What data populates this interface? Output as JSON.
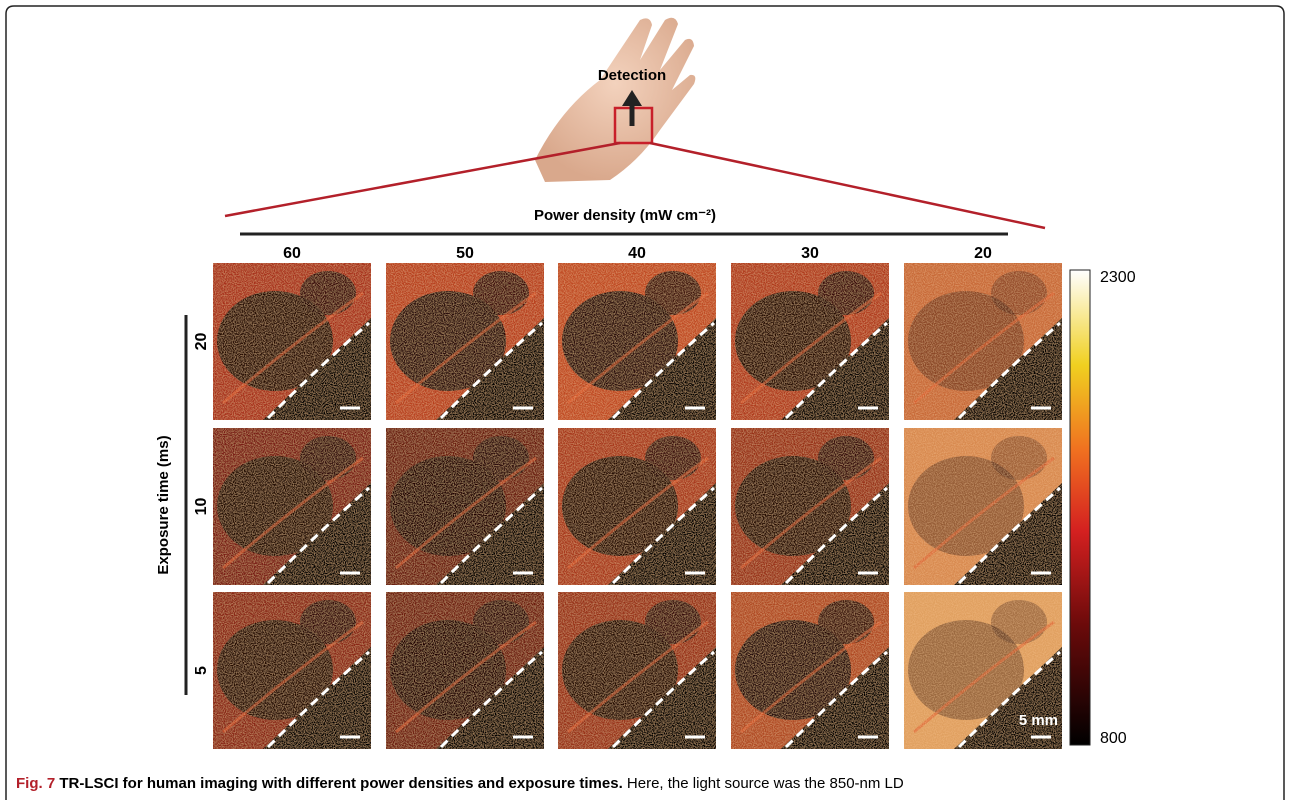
{
  "figure": {
    "hand_label": "Detection",
    "column_axis_title": "Power density (mW cm⁻²)",
    "columns": [
      60,
      50,
      40,
      30,
      20
    ],
    "row_axis_title": "Exposure time (ms)",
    "rows": [
      20,
      10,
      5
    ],
    "scale_bar": "5 mm",
    "colorbar": {
      "max": 2300,
      "min": 800
    }
  },
  "caption": {
    "label": "Fig. 7",
    "title": "TR-LSCI for human imaging with different power densities and exposure times.",
    "text": "Here, the light source was the 850-nm LD"
  }
}
